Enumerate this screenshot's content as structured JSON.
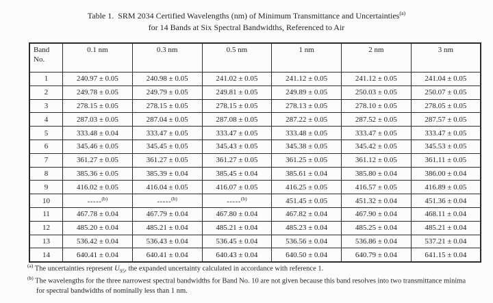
{
  "title": {
    "line1": "Table 1.  SRM 2034 Certified Wavelengths (nm) of Minimum Transmittance and Uncertainties",
    "line1_sup": "(a)",
    "line2": "for 14 Bands at Six Spectral Bandwidths, Referenced to Air"
  },
  "table": {
    "corner_header_line1": "Band",
    "corner_header_line2": "No.",
    "bandwidth_headers": [
      "0.1 nm",
      "0.3 nm",
      "0.5 nm",
      "1 nm",
      "2 nm",
      "3 nm"
    ],
    "missing_value": {
      "dashes": "-----",
      "sup": "(b)"
    },
    "rows": [
      {
        "band": "1",
        "values": [
          "240.97 ± 0.05",
          "240.98 ± 0.05",
          "241.02 ± 0.05",
          "241.12 ± 0.05",
          "241.12 ± 0.05",
          "241.04 ± 0.05"
        ]
      },
      {
        "band": "2",
        "values": [
          "249.78 ± 0.05",
          "249.79 ± 0.05",
          "249.81 ± 0.05",
          "249.89 ± 0.05",
          "250.03 ± 0.05",
          "250.07 ± 0.05"
        ]
      },
      {
        "band": "3",
        "values": [
          "278.15 ± 0.05",
          "278.15 ± 0.05",
          "278.15 ± 0.05",
          "278.13 ± 0.05",
          "278.10 ± 0.05",
          "278.05 ± 0.05"
        ]
      },
      {
        "band": "4",
        "values": [
          "287.03 ± 0.05",
          "287.04 ± 0.05",
          "287.08 ± 0.05",
          "287.22 ± 0.05",
          "287.52 ± 0.05",
          "287.57 ± 0.05"
        ]
      },
      {
        "band": "5",
        "values": [
          "333.48 ± 0.04",
          "333.47 ± 0.05",
          "333.47 ± 0.05",
          "333.48 ± 0.05",
          "333.47 ± 0.05",
          "333.47 ± 0.05"
        ]
      },
      {
        "band": "6",
        "values": [
          "345.46 ± 0.05",
          "345.45 ± 0.05",
          "345.43 ± 0.05",
          "345.38 ± 0.05",
          "345.42 ± 0.05",
          "345.53 ± 0.05"
        ]
      },
      {
        "band": "7",
        "values": [
          "361.27 ± 0.05",
          "361.27 ± 0.05",
          "361.27 ± 0.05",
          "361.25 ± 0.05",
          "361.12 ± 0.05",
          "361.11 ± 0.05"
        ]
      },
      {
        "band": "8",
        "values": [
          "385.36 ± 0.05",
          "385.39 ± 0.04",
          "385.45 ± 0.04",
          "385.61 ± 0.04",
          "385.80 ± 0.04",
          "386.00 ± 0.04"
        ]
      },
      {
        "band": "9",
        "values": [
          "416.02 ± 0.05",
          "416.04 ± 0.05",
          "416.07 ± 0.05",
          "416.25 ± 0.05",
          "416.57 ± 0.05",
          "416.89 ± 0.05"
        ]
      },
      {
        "band": "10",
        "values": [
          null,
          null,
          null,
          "451.45 ± 0.05",
          "451.32 ± 0.04",
          "451.36 ± 0.04"
        ]
      },
      {
        "band": "11",
        "values": [
          "467.78 ± 0.04",
          "467.79 ± 0.04",
          "467.80 ± 0.04",
          "467.82 ± 0.04",
          "467.90 ± 0.04",
          "468.11 ± 0.04"
        ]
      },
      {
        "band": "12",
        "values": [
          "485.20 ± 0.04",
          "485.21 ± 0.04",
          "485.21 ± 0.04",
          "485.23 ± 0.04",
          "485.25 ± 0.04",
          "485.21 ± 0.04"
        ]
      },
      {
        "band": "13",
        "values": [
          "536.42 ± 0.04",
          "536.43 ± 0.04",
          "536.45 ± 0.04",
          "536.56 ± 0.04",
          "536.86 ± 0.04",
          "537.21 ± 0.04"
        ]
      },
      {
        "band": "14",
        "values": [
          "640.41 ± 0.04",
          "640.41 ± 0.04",
          "640.43 ± 0.04",
          "640.50 ± 0.04",
          "640.79 ± 0.04",
          "641.15 ± 0.04"
        ]
      }
    ]
  },
  "footnotes": {
    "a": {
      "marker": "(a)",
      "text_before_var": " The uncertainties represent ",
      "var": "U",
      "var_sub": "95",
      "text_after_var": ", the expanded uncertainty calculated in accordance with reference 1."
    },
    "b": {
      "marker": "(b)",
      "text": " The wavelengths for the three narrowest spectral bandwidths for Band No. 10 are not given because this band resolves into two transmittance minima for spectral bandwidths of nominally less than 1 nm."
    }
  },
  "colors": {
    "text": "#1f1f1f",
    "border": "#2b2b2b",
    "background": "#fcfcfc"
  }
}
